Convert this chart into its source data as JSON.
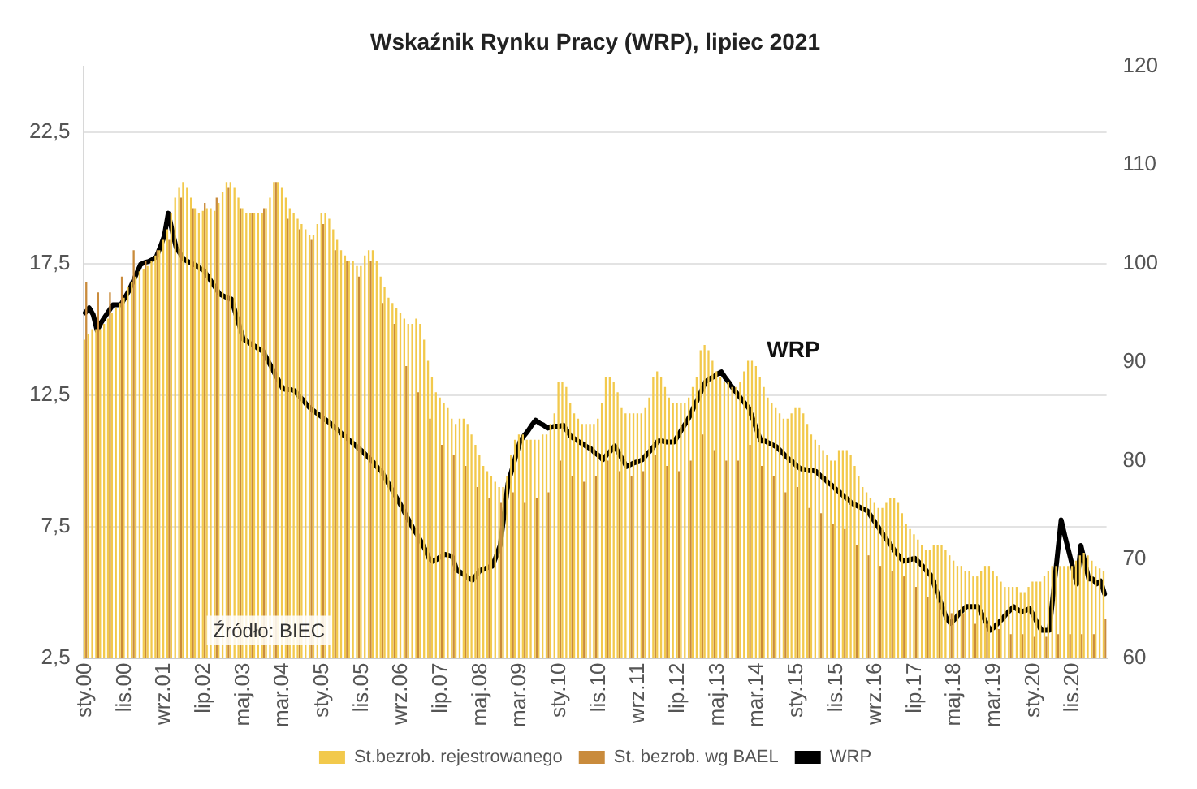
{
  "chart_data": {
    "type": "bar",
    "title": "Wskaźnik Rynku Pracy (WRP), lipiec 2021",
    "categories": [
      "sty.00",
      null,
      null,
      null,
      null,
      null,
      null,
      null,
      null,
      null,
      "lis.00",
      null,
      null,
      null,
      null,
      null,
      null,
      null,
      null,
      null,
      "wrz.01",
      null,
      null,
      null,
      null,
      null,
      null,
      null,
      null,
      null,
      "lip.02",
      null,
      null,
      null,
      null,
      null,
      null,
      null,
      null,
      null,
      "maj.03",
      null,
      null,
      null,
      null,
      null,
      null,
      null,
      null,
      null,
      "mar.04",
      null,
      null,
      null,
      null,
      null,
      null,
      null,
      null,
      null,
      "sty.05",
      null,
      null,
      null,
      null,
      null,
      null,
      null,
      null,
      null,
      "lis.05",
      null,
      null,
      null,
      null,
      null,
      null,
      null,
      null,
      null,
      "wrz.06",
      null,
      null,
      null,
      null,
      null,
      null,
      null,
      null,
      null,
      "lip.07",
      null,
      null,
      null,
      null,
      null,
      null,
      null,
      null,
      null,
      "maj.08",
      null,
      null,
      null,
      null,
      null,
      null,
      null,
      null,
      null,
      "mar.09",
      null,
      null,
      null,
      null,
      null,
      null,
      null,
      null,
      null,
      "sty.10",
      null,
      null,
      null,
      null,
      null,
      null,
      null,
      null,
      null,
      "lis.10",
      null,
      null,
      null,
      null,
      null,
      null,
      null,
      null,
      null,
      "wrz.11",
      null,
      null,
      null,
      null,
      null,
      null,
      null,
      null,
      null,
      "lip.12",
      null,
      null,
      null,
      null,
      null,
      null,
      null,
      null,
      null,
      "maj.13",
      null,
      null,
      null,
      null,
      null,
      null,
      null,
      null,
      null,
      "mar.14",
      null,
      null,
      null,
      null,
      null,
      null,
      null,
      null,
      null,
      "sty.15",
      null,
      null,
      null,
      null,
      null,
      null,
      null,
      null,
      null,
      "lis.15",
      null,
      null,
      null,
      null,
      null,
      null,
      null,
      null,
      null,
      "wrz.16",
      null,
      null,
      null,
      null,
      null,
      null,
      null,
      null,
      null,
      "lip.17",
      null,
      null,
      null,
      null,
      null,
      null,
      null,
      null,
      null,
      "maj.18",
      null,
      null,
      null,
      null,
      null,
      null,
      null,
      null,
      null,
      "mar.19",
      null,
      null,
      null,
      null,
      null,
      null,
      null,
      null,
      null,
      "sty.20",
      null,
      null,
      null,
      null,
      null,
      null,
      null,
      null,
      null,
      "lis.20",
      null,
      null,
      null,
      null,
      null,
      null,
      null,
      null
    ],
    "series": [
      {
        "name": "St.bezrob. rejestrowanego",
        "color": "#f2c94c",
        "values": [
          14.6,
          14.8,
          15.0,
          15.0,
          15.0,
          15.2,
          15.4,
          15.6,
          15.8,
          16.0,
          16.2,
          16.6,
          16.8,
          17.0,
          17.2,
          17.3,
          17.4,
          17.6,
          17.8,
          18.0,
          18.4,
          18.8,
          19.4,
          20.0,
          20.4,
          20.6,
          20.4,
          20.0,
          19.6,
          19.4,
          19.5,
          19.6,
          19.6,
          19.5,
          19.8,
          20.2,
          20.6,
          20.6,
          20.4,
          20.0,
          19.6,
          19.4,
          19.4,
          19.4,
          19.4,
          19.4,
          19.6,
          20.0,
          20.6,
          20.6,
          20.4,
          20.0,
          19.6,
          19.4,
          19.2,
          19.0,
          18.8,
          18.6,
          18.6,
          19.0,
          19.4,
          19.4,
          19.2,
          18.8,
          18.4,
          18.0,
          17.8,
          17.6,
          17.6,
          17.4,
          17.4,
          17.8,
          18.0,
          18.0,
          17.6,
          17.0,
          16.6,
          16.2,
          16.0,
          15.8,
          15.6,
          15.4,
          15.2,
          15.2,
          15.4,
          15.2,
          14.6,
          13.8,
          13.2,
          12.6,
          12.4,
          12.2,
          12.0,
          11.6,
          11.4,
          11.6,
          11.6,
          11.4,
          11.0,
          10.6,
          10.2,
          9.8,
          9.6,
          9.4,
          9.2,
          9.0,
          9.0,
          9.4,
          10.2,
          10.8,
          11.0,
          11.0,
          10.8,
          10.8,
          10.8,
          10.8,
          11.0,
          11.0,
          11.4,
          11.8,
          13.0,
          13.0,
          12.8,
          12.2,
          11.8,
          11.6,
          11.4,
          11.4,
          11.4,
          11.4,
          11.6,
          12.2,
          13.2,
          13.2,
          13.0,
          12.6,
          12.0,
          11.8,
          11.8,
          11.8,
          11.8,
          11.8,
          12.0,
          12.4,
          13.2,
          13.4,
          13.2,
          12.8,
          12.4,
          12.2,
          12.2,
          12.2,
          12.2,
          12.4,
          12.8,
          13.2,
          14.2,
          14.4,
          14.2,
          13.8,
          13.4,
          13.2,
          13.0,
          13.0,
          12.8,
          12.8,
          13.0,
          13.4,
          13.8,
          13.8,
          13.6,
          13.2,
          12.8,
          12.4,
          12.2,
          12.0,
          11.8,
          11.6,
          11.6,
          11.8,
          12.0,
          12.0,
          11.8,
          11.4,
          11.0,
          10.8,
          10.6,
          10.4,
          10.2,
          10.0,
          10.0,
          10.4,
          10.4,
          10.4,
          10.2,
          9.8,
          9.4,
          9.0,
          8.8,
          8.6,
          8.4,
          8.2,
          8.2,
          8.4,
          8.6,
          8.6,
          8.4,
          8.0,
          7.6,
          7.4,
          7.2,
          7.0,
          6.8,
          6.6,
          6.6,
          6.8,
          6.8,
          6.8,
          6.6,
          6.4,
          6.2,
          6.0,
          6.0,
          5.8,
          5.8,
          5.6,
          5.6,
          5.8,
          6.0,
          6.0,
          5.8,
          5.6,
          5.4,
          5.2,
          5.2,
          5.2,
          5.2,
          5.0,
          5.0,
          5.2,
          5.4,
          5.4,
          5.4,
          5.6,
          5.8,
          6.0,
          6.0,
          6.0,
          6.0,
          6.0,
          6.0,
          6.2,
          6.4,
          6.5,
          6.4,
          6.2,
          6.0,
          5.9,
          5.8
        ]
      },
      {
        "name": "St. bezrob. wg BAEL",
        "color": "#c98b3c",
        "values": [
          16.8,
          null,
          null,
          16.4,
          null,
          null,
          16.4,
          null,
          null,
          17.0,
          null,
          null,
          18.0,
          null,
          null,
          17.6,
          null,
          null,
          18.0,
          null,
          null,
          18.4,
          null,
          null,
          20.0,
          null,
          null,
          19.6,
          null,
          null,
          19.8,
          null,
          null,
          20.0,
          null,
          null,
          20.4,
          null,
          null,
          19.6,
          null,
          null,
          19.4,
          null,
          null,
          19.6,
          null,
          null,
          20.6,
          null,
          null,
          19.2,
          null,
          null,
          18.8,
          null,
          null,
          18.4,
          null,
          null,
          19.0,
          null,
          null,
          18.0,
          null,
          null,
          17.6,
          null,
          null,
          17.0,
          null,
          null,
          17.6,
          null,
          null,
          16.0,
          null,
          null,
          15.2,
          null,
          null,
          13.6,
          null,
          null,
          12.6,
          null,
          null,
          11.6,
          null,
          null,
          10.6,
          null,
          null,
          10.2,
          null,
          null,
          9.8,
          null,
          null,
          9.0,
          null,
          null,
          8.6,
          null,
          null,
          8.4,
          null,
          null,
          8.8,
          null,
          null,
          8.4,
          null,
          null,
          8.6,
          null,
          null,
          8.8,
          null,
          null,
          10.0,
          null,
          null,
          9.4,
          null,
          null,
          9.2,
          null,
          null,
          9.4,
          null,
          null,
          10.0,
          null,
          null,
          9.6,
          null,
          null,
          9.4,
          null,
          null,
          9.6,
          null,
          null,
          10.2,
          null,
          null,
          9.8,
          null,
          null,
          9.6,
          null,
          null,
          10.0,
          null,
          null,
          11.0,
          null,
          null,
          10.4,
          null,
          null,
          10.0,
          null,
          null,
          10.0,
          null,
          null,
          10.6,
          null,
          null,
          9.8,
          null,
          null,
          9.4,
          null,
          null,
          8.8,
          null,
          null,
          9.0,
          null,
          null,
          8.2,
          null,
          null,
          8.0,
          null,
          null,
          7.6,
          null,
          null,
          7.4,
          null,
          null,
          6.8,
          null,
          null,
          6.4,
          null,
          null,
          6.0,
          null,
          null,
          5.8,
          null,
          null,
          5.6,
          null,
          null,
          5.2,
          null,
          null,
          4.8,
          null,
          null,
          4.6,
          null,
          null,
          4.2,
          null,
          null,
          4.2,
          null,
          null,
          3.8,
          null,
          null,
          3.8,
          null,
          null,
          3.6,
          null,
          null,
          3.4,
          null,
          null,
          3.4,
          null,
          null,
          3.3,
          null,
          null,
          3.3,
          null,
          null,
          3.4,
          null,
          null,
          3.4,
          null,
          null,
          3.4,
          null,
          null,
          3.4,
          null,
          null,
          4.0
        ]
      },
      {
        "name": "WRP",
        "type": "line",
        "axis": "y2",
        "color": "#000000",
        "values": [
          95.0,
          95.5,
          94.8,
          93.2,
          94.0,
          94.6,
          95.2,
          95.8,
          95.8,
          95.8,
          96.5,
          97.2,
          98.1,
          99.0,
          99.9,
          100.1,
          100.2,
          100.4,
          100.7,
          101.7,
          102.8,
          105.1,
          103.3,
          101.6,
          101.0,
          100.4,
          100.2,
          100.0,
          99.8,
          99.5,
          99.3,
          98.7,
          98.1,
          97.5,
          96.9,
          96.7,
          96.5,
          96.4,
          95.0,
          93.7,
          92.3,
          92.1,
          91.8,
          91.6,
          91.3,
          91.1,
          90.3,
          89.6,
          88.8,
          88.1,
          87.3,
          87.2,
          87.2,
          87.1,
          86.6,
          86.2,
          85.7,
          85.3,
          85.0,
          84.7,
          84.4,
          84.1,
          83.8,
          83.4,
          83.1,
          82.7,
          82.4,
          82.0,
          81.7,
          81.3,
          81.0,
          80.6,
          80.2,
          79.8,
          79.3,
          78.9,
          78.2,
          77.5,
          76.8,
          76.1,
          75.4,
          74.6,
          73.9,
          73.1,
          72.5,
          71.8,
          71.0,
          70.1,
          69.8,
          70.0,
          70.3,
          70.5,
          70.4,
          70.2,
          68.9,
          68.7,
          68.4,
          68.1,
          67.9,
          68.4,
          68.9,
          69.0,
          69.2,
          69.3,
          70.3,
          71.4,
          74.5,
          77.7,
          79.1,
          80.5,
          81.9,
          82.5,
          83.0,
          83.6,
          84.1,
          83.8,
          83.6,
          83.3,
          83.4,
          83.5,
          83.5,
          83.6,
          83.0,
          82.4,
          82.2,
          81.9,
          81.7,
          81.4,
          81.2,
          80.8,
          80.5,
          80.1,
          80.6,
          81.0,
          81.5,
          80.8,
          80.1,
          79.4,
          79.6,
          79.8,
          79.9,
          80.1,
          80.6,
          81.0,
          81.5,
          82.0,
          82.0,
          81.9,
          81.9,
          81.9,
          82.5,
          83.2,
          83.8,
          84.5,
          85.4,
          86.2,
          87.1,
          88.0,
          88.3,
          88.5,
          88.8,
          89.0,
          88.4,
          87.9,
          87.3,
          86.8,
          86.3,
          85.8,
          85.3,
          84.2,
          83.1,
          82.0,
          82.0,
          81.8,
          81.6,
          81.4,
          81.0,
          80.6,
          80.2,
          79.9,
          79.5,
          79.2,
          79.1,
          79.0,
          79.0,
          78.9,
          78.5,
          78.2,
          77.8,
          77.5,
          77.1,
          76.8,
          76.4,
          76.1,
          75.7,
          75.5,
          75.3,
          75.1,
          74.9,
          74.3,
          73.7,
          73.1,
          72.5,
          71.9,
          71.4,
          70.8,
          70.3,
          69.8,
          69.9,
          70.0,
          70.1,
          69.7,
          69.3,
          68.8,
          68.4,
          67.3,
          66.2,
          65.1,
          64.0,
          63.5,
          63.9,
          64.4,
          64.8,
          65.2,
          65.2,
          65.2,
          65.2,
          64.4,
          63.6,
          62.8,
          63.1,
          63.5,
          63.9,
          64.4,
          64.8,
          65.2,
          64.9,
          64.7,
          64.8,
          65.0,
          64.3,
          63.5,
          62.8,
          62.8,
          62.8,
          66.5,
          70.2,
          74.0,
          72.3,
          70.7,
          69.1,
          67.5,
          71.4,
          69.7,
          68.0,
          68.0,
          67.5,
          67.8,
          66.5
        ]
      }
    ],
    "ylim": [
      2.5,
      25
    ],
    "yticks": [
      {
        "value": 2.5,
        "label": "2,5"
      },
      {
        "value": 7.5,
        "label": "7,5"
      },
      {
        "value": 12.5,
        "label": "12,5"
      },
      {
        "value": 17.5,
        "label": "17,5"
      },
      {
        "value": 22.5,
        "label": "22,5"
      }
    ],
    "y2lim": [
      60,
      120
    ],
    "y2ticks": [
      60,
      70,
      80,
      90,
      100,
      110,
      120
    ],
    "grid": "y",
    "legend": "bottom",
    "annotations": [
      "WRP",
      "Źródło: BIEC"
    ]
  }
}
